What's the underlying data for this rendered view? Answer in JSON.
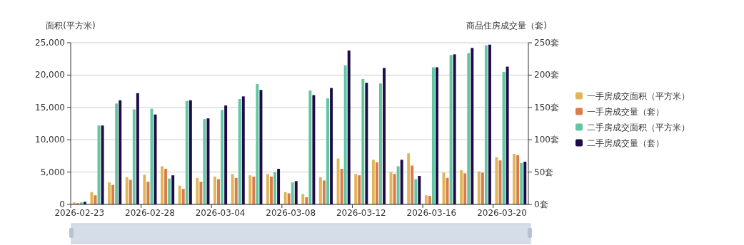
{
  "chart_data": {
    "type": "bar",
    "ylabel": "面积(平方米)",
    "y2label": "商品住房成交量（套)",
    "categories": [
      "2026-02-23",
      null,
      null,
      null,
      "2026-02-28",
      null,
      null,
      null,
      "2026-03-04",
      null,
      null,
      null,
      "2026-03-08",
      null,
      null,
      null,
      "2026-03-12",
      null,
      null,
      null,
      "2026-03-16",
      null,
      null,
      null,
      "2026-03-20",
      null
    ],
    "series": [
      {
        "name": "一手房成交面积（平方米）",
        "color": "#e0b656",
        "values": [
          300,
          1900,
          3400,
          4200,
          4600,
          5900,
          2900,
          4100,
          4300,
          4700,
          4500,
          4700,
          1900,
          1600,
          4200,
          7100,
          4700,
          6900,
          5000,
          7900,
          1400,
          4900,
          5300,
          5100,
          7300,
          7800
        ]
      },
      {
        "name": "一手房成交量（套）",
        "color": "#d97b4c",
        "axis": "y2",
        "values": [
          2,
          14,
          30,
          38,
          35,
          55,
          24,
          35,
          39,
          41,
          43,
          43,
          17,
          11,
          37,
          55,
          45,
          65,
          47,
          60,
          13,
          41,
          48,
          49,
          68,
          76
        ]
      },
      {
        "name": "二手房成交面积（平方米）",
        "color": "#62c6a2",
        "values": [
          300,
          12200,
          15600,
          14700,
          14800,
          4000,
          16000,
          13200,
          14600,
          16300,
          18600,
          5000,
          3400,
          17600,
          16400,
          21500,
          19400,
          18700,
          5900,
          3900,
          21200,
          23100,
          23400,
          24600,
          20500,
          6400
        ]
      },
      {
        "name": "二手房成交量（套）",
        "color": "#1e0c48",
        "axis": "y2",
        "values": [
          4,
          122,
          161,
          172,
          139,
          45,
          161,
          133,
          153,
          167,
          177,
          55,
          36,
          169,
          180,
          238,
          188,
          211,
          69,
          44,
          212,
          232,
          242,
          247,
          213,
          66
        ]
      }
    ],
    "ylim": [
      0,
      25000
    ],
    "yticks": [
      {
        "value": 0,
        "label": "0"
      },
      {
        "value": 5000,
        "label": "5,000"
      },
      {
        "value": 10000,
        "label": "10,000"
      },
      {
        "value": 15000,
        "label": "15,000"
      },
      {
        "value": 20000,
        "label": "20,000"
      },
      {
        "value": 25000,
        "label": "25,000"
      }
    ],
    "y2lim": [
      0,
      250
    ],
    "y2ticks": [
      {
        "value": 0,
        "label": "0套"
      },
      {
        "value": 50,
        "label": "50套"
      },
      {
        "value": 100,
        "label": "100套"
      },
      {
        "value": 150,
        "label": "150套"
      },
      {
        "value": 200,
        "label": "200套"
      },
      {
        "value": 250,
        "label": "250套"
      }
    ],
    "grid": "y",
    "legend": "right"
  }
}
